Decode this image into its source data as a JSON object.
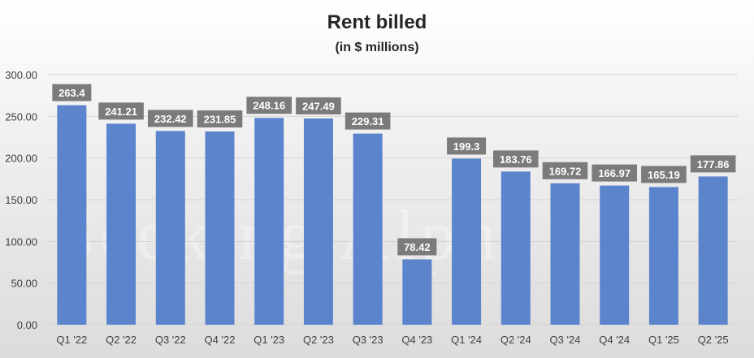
{
  "chart_data": {
    "type": "bar",
    "title": "Rent billed",
    "subtitle": "(in $ millions)",
    "categories": [
      "Q1 '22",
      "Q2 '22",
      "Q3 '22",
      "Q4 '22",
      "Q1 '23",
      "Q2 '23",
      "Q3 '23",
      "Q4 '23",
      "Q1 '24",
      "Q2 '24",
      "Q3 '24",
      "Q4 '24",
      "Q1 '25",
      "Q2 '25"
    ],
    "values": [
      263.4,
      241.21,
      232.42,
      231.85,
      248.16,
      247.49,
      229.31,
      78.42,
      199.3,
      183.76,
      169.72,
      166.97,
      165.19,
      177.86
    ],
    "value_labels": [
      "263.4",
      "241.21",
      "232.42",
      "231.85",
      "248.16",
      "247.49",
      "229.31",
      "78.42",
      "199.3",
      "183.76",
      "169.72",
      "166.97",
      "165.19",
      "177.86"
    ],
    "yticks": [
      "0.00",
      "50.00",
      "100.00",
      "150.00",
      "200.00",
      "250.00",
      "300.00"
    ],
    "ylim": [
      0,
      300
    ],
    "xlabel": "",
    "ylabel": "",
    "grid": true,
    "legend": "none",
    "colors": {
      "bar": "#5b84cd",
      "label_bg": "#7b7b7b",
      "label_text": "#ffffff",
      "grid": "#d4d4d4",
      "axis_text": "#404040"
    }
  },
  "watermark": "Seeking Alpha"
}
